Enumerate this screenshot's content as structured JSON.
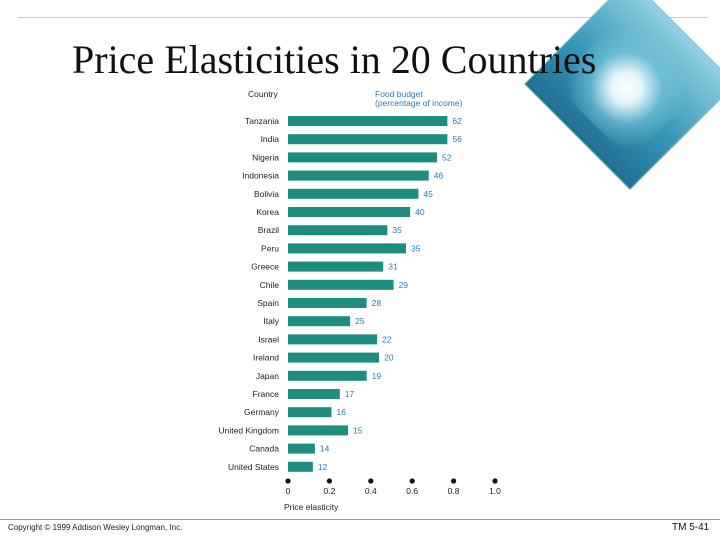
{
  "slide": {
    "title": "Price Elasticities in 20 Countries",
    "copyright": "Copyright © 1999 Addison Wesley Longman, Inc.",
    "slide_number": "TM 5-41"
  },
  "chart_data": {
    "type": "bar",
    "orientation": "horizontal",
    "title": "Price Elasticities in 20 Countries",
    "category_header": "Country",
    "value_header_line1": "Food budget",
    "value_header_line2": "(percentage of income)",
    "xlabel": "Price elasticity",
    "xlim": [
      0,
      1.0
    ],
    "xticks": [
      "0",
      "0.2",
      "0.4",
      "0.6",
      "0.8",
      "1.0"
    ],
    "xtick_values": [
      0,
      0.2,
      0.4,
      0.6,
      0.8,
      1.0
    ],
    "categories": [
      "Tanzania",
      "India",
      "Nigeria",
      "Indonesia",
      "Bolivia",
      "Korea",
      "Brazil",
      "Peru",
      "Greece",
      "Chile",
      "Spain",
      "Italy",
      "Israel",
      "Ireland",
      "Japan",
      "France",
      "Germany",
      "United Kingdom",
      "Canada",
      "United States"
    ],
    "values": [
      0.77,
      0.77,
      0.72,
      0.68,
      0.63,
      0.59,
      0.48,
      0.57,
      0.46,
      0.51,
      0.38,
      0.3,
      0.43,
      0.44,
      0.38,
      0.25,
      0.21,
      0.29,
      0.13,
      0.12
    ],
    "food_budget_labels": [
      "62",
      "56",
      "52",
      "46",
      "45",
      "40",
      "35",
      "35",
      "31",
      "29",
      "28",
      "25",
      "22",
      "20",
      "19",
      "17",
      "16",
      "15",
      "14",
      "12"
    ],
    "colors": {
      "bar": "#1e8c7e",
      "budget_label": "#2a79b8",
      "axis_dot": "#111111"
    }
  }
}
